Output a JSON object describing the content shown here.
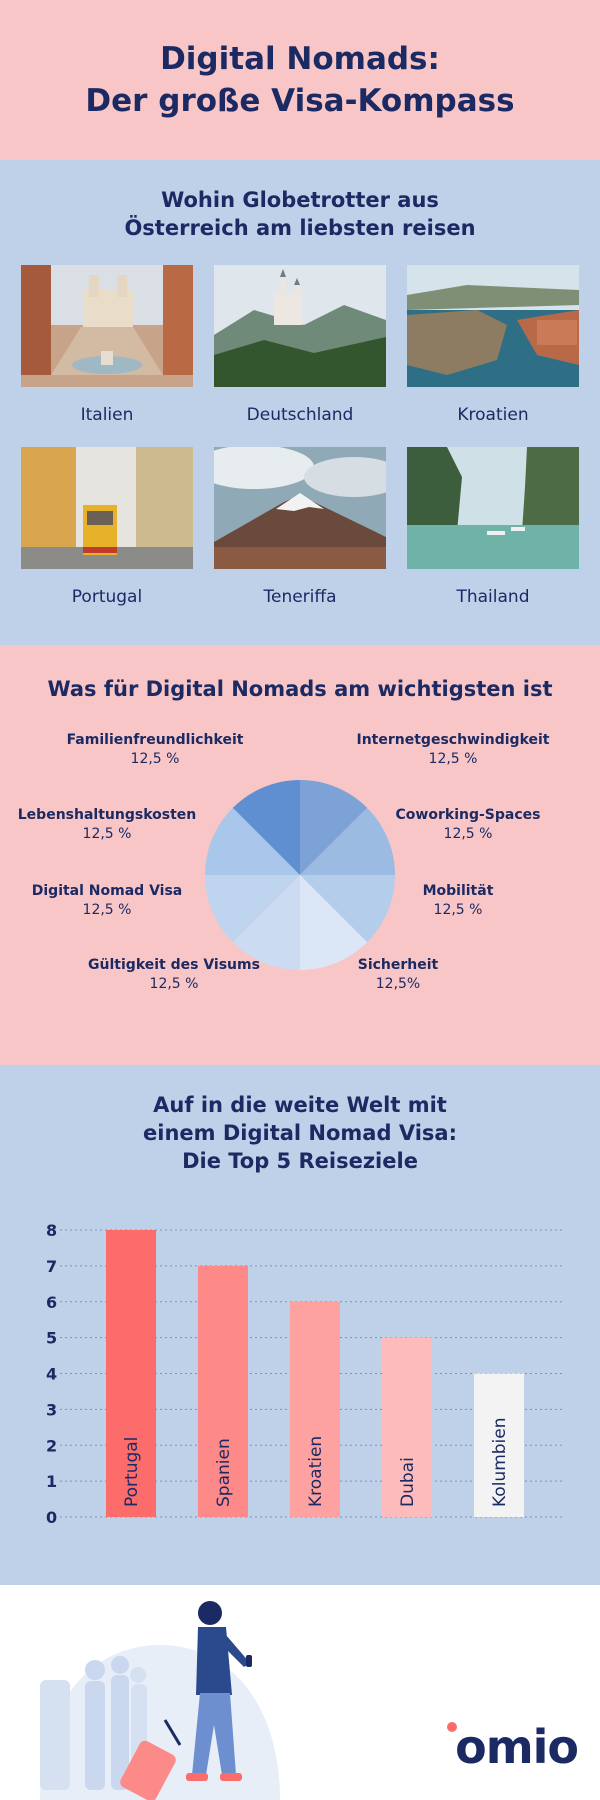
{
  "header": {
    "title_line1": "Digital Nomads:",
    "title_line2": "Der große Visa-Kompass"
  },
  "destinations": {
    "heading_line1": "Wohin Globetrotter aus",
    "heading_line2": "Österreich am liebsten reisen",
    "items": [
      {
        "label": "Italien"
      },
      {
        "label": "Deutschland"
      },
      {
        "label": "Kroatien"
      },
      {
        "label": "Portugal"
      },
      {
        "label": "Teneriffa"
      },
      {
        "label": "Thailand"
      }
    ]
  },
  "priorities": {
    "heading": "Was für Digital Nomads am wichtigsten ist"
  },
  "top5": {
    "heading_line1": "Auf in die weite Welt mit",
    "heading_line2": "einem Digital Nomad Visa:",
    "heading_line3": "Die Top 5 Reiseziele"
  },
  "footer": {
    "brand": "omio"
  },
  "colors": {
    "title_bg": "#f9c6c7",
    "dest_bg": "#bfd0e9",
    "navy": "#1b2a63",
    "accent": "#fc6c6b"
  },
  "chart_data": [
    {
      "type": "pie",
      "categories": [
        "Internetgeschwindigkeit",
        "Coworking-Spaces",
        "Mobilität",
        "Sicherheit",
        "Gültigkeit des Visums",
        "Digital Nomad Visa",
        "Lebenshaltungskosten",
        "Familienfreundlichkeit"
      ],
      "values": [
        12.5,
        12.5,
        12.5,
        12.5,
        12.5,
        12.5,
        12.5,
        12.5
      ],
      "value_labels": [
        "12,5 %",
        "12,5 %",
        "12,5 %",
        "12,5%",
        "12,5 %",
        "12,5 %",
        "12,5 %",
        "12,5 %"
      ],
      "colors": [
        "#7ca2d6",
        "#9bbbe2",
        "#b4cdeb",
        "#dbe7f6",
        "#cbdcf2",
        "#bed4ef",
        "#a9c7ea",
        "#5f8fd0"
      ]
    },
    {
      "type": "bar",
      "categories": [
        "Portugal",
        "Spanien",
        "Kroatien",
        "Dubai",
        "Kolumbien"
      ],
      "values": [
        8,
        7,
        6,
        5,
        4
      ],
      "ylim": [
        0,
        8
      ],
      "yticks": [
        "0",
        "1",
        "2",
        "3",
        "4",
        "5",
        "6",
        "7",
        "8"
      ],
      "colors": [
        "#fc6c6b",
        "#fd8a89",
        "#fda2a1",
        "#fdbcbb",
        "#f3f3f3"
      ],
      "grid": true
    }
  ]
}
